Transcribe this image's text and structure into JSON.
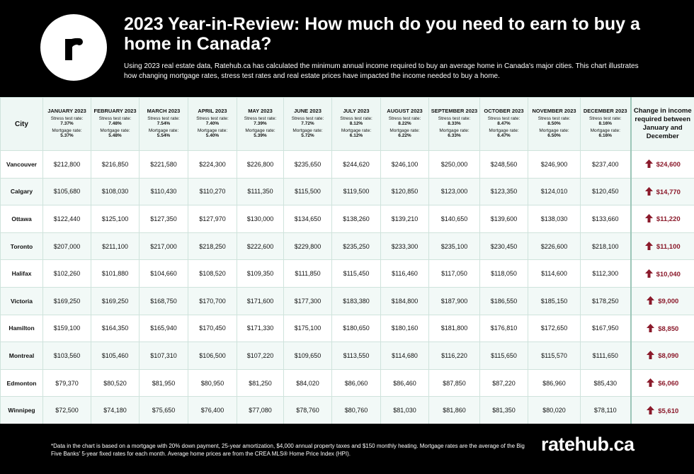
{
  "header": {
    "title": "2023 Year-in-Review: How much do you need to earn to buy a home in Canada?",
    "description": "Using 2023 real estate data, Ratehub.ca has calculated the minimum annual income required to buy an average home in Canada's major cities. This chart illustrates how changing mortgage rates, stress test rates and real estate prices have impacted the income needed to buy a home."
  },
  "table": {
    "city_header": "City",
    "stress_label": "Stress test rate:",
    "mortgage_label": "Mortgage rate:",
    "change_header": "Change in income required between January and December",
    "columns": [
      {
        "month": "JANUARY 2023",
        "stress": "7.37%",
        "mortgage": "5.37%"
      },
      {
        "month": "FEBRUARY 2023",
        "stress": "7.48%",
        "mortgage": "5.48%"
      },
      {
        "month": "MARCH 2023",
        "stress": "7.54%",
        "mortgage": "5.54%"
      },
      {
        "month": "APRIL 2023",
        "stress": "7.40%",
        "mortgage": "5.40%"
      },
      {
        "month": "MAY 2023",
        "stress": "7.39%",
        "mortgage": "5.39%"
      },
      {
        "month": "JUNE 2023",
        "stress": "7.72%",
        "mortgage": "5.72%"
      },
      {
        "month": "JULY 2023",
        "stress": "8.12%",
        "mortgage": "6.12%"
      },
      {
        "month": "AUGUST 2023",
        "stress": "8.22%",
        "mortgage": "6.22%"
      },
      {
        "month": "SEPTEMBER 2023",
        "stress": "8.33%",
        "mortgage": "6.33%"
      },
      {
        "month": "OCTOBER 2023",
        "stress": "8.47%",
        "mortgage": "6.47%"
      },
      {
        "month": "NOVEMBER 2023",
        "stress": "8.50%",
        "mortgage": "6.50%"
      },
      {
        "month": "DECEMBER 2023",
        "stress": "8.16%",
        "mortgage": "6.16%"
      }
    ],
    "rows": [
      {
        "city": "Vancouver",
        "values": [
          "$212,800",
          "$216,850",
          "$221,580",
          "$224,300",
          "$226,800",
          "$235,650",
          "$244,620",
          "$246,100",
          "$250,000",
          "$248,560",
          "$246,900",
          "$237,400"
        ],
        "change": "$24,600"
      },
      {
        "city": "Calgary",
        "values": [
          "$105,680",
          "$108,030",
          "$110,430",
          "$110,270",
          "$111,350",
          "$115,500",
          "$119,500",
          "$120,850",
          "$123,000",
          "$123,350",
          "$124,010",
          "$120,450"
        ],
        "change": "$14,770"
      },
      {
        "city": "Ottawa",
        "values": [
          "$122,440",
          "$125,100",
          "$127,350",
          "$127,970",
          "$130,000",
          "$134,650",
          "$138,260",
          "$139,210",
          "$140,650",
          "$139,600",
          "$138,030",
          "$133,660"
        ],
        "change": "$11,220"
      },
      {
        "city": "Toronto",
        "values": [
          "$207,000",
          "$211,100",
          "$217,000",
          "$218,250",
          "$222,600",
          "$229,800",
          "$235,250",
          "$233,300",
          "$235,100",
          "$230,450",
          "$226,600",
          "$218,100"
        ],
        "change": "$11,100"
      },
      {
        "city": "Halifax",
        "values": [
          "$102,260",
          "$101,880",
          "$104,660",
          "$108,520",
          "$109,350",
          "$111,850",
          "$115,450",
          "$116,460",
          "$117,050",
          "$118,050",
          "$114,600",
          "$112,300"
        ],
        "change": "$10,040"
      },
      {
        "city": "Victoria",
        "values": [
          "$169,250",
          "$169,250",
          "$168,750",
          "$170,700",
          "$171,600",
          "$177,300",
          "$183,380",
          "$184,800",
          "$187,900",
          "$186,550",
          "$185,150",
          "$178,250"
        ],
        "change": "$9,000"
      },
      {
        "city": "Hamilton",
        "values": [
          "$159,100",
          "$164,350",
          "$165,940",
          "$170,450",
          "$171,330",
          "$175,100",
          "$180,650",
          "$180,160",
          "$181,800",
          "$176,810",
          "$172,650",
          "$167,950"
        ],
        "change": "$8,850"
      },
      {
        "city": "Montreal",
        "values": [
          "$103,560",
          "$105,460",
          "$107,310",
          "$106,500",
          "$107,220",
          "$109,650",
          "$113,550",
          "$114,680",
          "$116,220",
          "$115,650",
          "$115,570",
          "$111,650"
        ],
        "change": "$8,090"
      },
      {
        "city": "Edmonton",
        "values": [
          "$79,370",
          "$80,520",
          "$81,950",
          "$80,950",
          "$81,250",
          "$84,020",
          "$86,060",
          "$86,460",
          "$87,850",
          "$87,220",
          "$86,960",
          "$85,430"
        ],
        "change": "$6,060"
      },
      {
        "city": "Winnipeg",
        "values": [
          "$72,500",
          "$74,180",
          "$75,650",
          "$76,400",
          "$77,080",
          "$78,760",
          "$80,760",
          "$81,030",
          "$81,860",
          "$81,350",
          "$80,020",
          "$78,110"
        ],
        "change": "$5,610"
      }
    ]
  },
  "footer": {
    "note": "*Data in the chart is based on a mortgage with 20% down payment, 25-year amortization, $4,000 annual property taxes and $150 monthly heating. Mortgage rates are the average of the Big Five Banks' 5-year fixed rates for each month.  Average home prices are from the CREA MLS® Home Price Index (HPI).",
    "brand": "ratehub.ca"
  }
}
